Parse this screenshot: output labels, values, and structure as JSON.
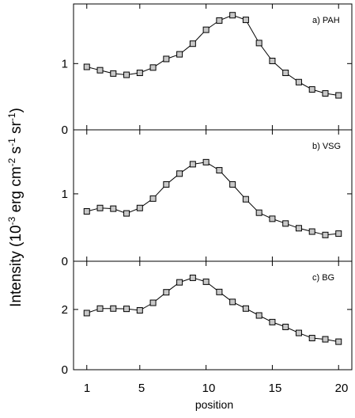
{
  "figure": {
    "xlabel": "position",
    "ylabel": {
      "parts": [
        {
          "text": "Intensity (10",
          "sup": false
        },
        {
          "text": "-3",
          "sup": true
        },
        {
          "text": " erg cm",
          "sup": false
        },
        {
          "text": "-2",
          "sup": true
        },
        {
          "text": " s",
          "sup": false
        },
        {
          "text": "-1",
          "sup": true
        },
        {
          "text": " sr",
          "sup": false
        },
        {
          "text": "-1",
          "sup": true
        },
        {
          "text": ")",
          "sup": false
        }
      ]
    },
    "x_ticks": [
      "1",
      "5",
      "10",
      "15",
      "20"
    ],
    "line_color": "#000000",
    "marker_fill": "#c8c8c8"
  },
  "chart_data": [
    {
      "type": "line",
      "title": "a) PAH",
      "xlabel": "position",
      "ylabel": "",
      "xlim": [
        0,
        21
      ],
      "ylim": [
        0,
        1.9
      ],
      "yticks": [
        "0",
        "1"
      ],
      "ytick_values": [
        0,
        1
      ],
      "marker": "square",
      "x": [
        1,
        2,
        3,
        4,
        5,
        6,
        7,
        8,
        9,
        10,
        11,
        12,
        13,
        14,
        15,
        16,
        17,
        18,
        19,
        20
      ],
      "y": [
        0.95,
        0.9,
        0.85,
        0.83,
        0.86,
        0.94,
        1.07,
        1.14,
        1.3,
        1.51,
        1.65,
        1.73,
        1.66,
        1.31,
        1.04,
        0.86,
        0.72,
        0.61,
        0.55,
        0.52
      ]
    },
    {
      "type": "line",
      "title": "b) VSG",
      "xlabel": "position",
      "ylabel": "",
      "xlim": [
        0,
        21
      ],
      "ylim": [
        0,
        1.95
      ],
      "yticks": [
        "0",
        "1"
      ],
      "ytick_values": [
        0,
        1
      ],
      "marker": "square",
      "x": [
        1,
        2,
        3,
        4,
        5,
        6,
        7,
        8,
        9,
        10,
        11,
        12,
        13,
        14,
        15,
        16,
        17,
        18,
        19,
        20
      ],
      "y": [
        0.74,
        0.79,
        0.78,
        0.71,
        0.79,
        0.93,
        1.14,
        1.3,
        1.44,
        1.47,
        1.35,
        1.14,
        0.92,
        0.72,
        0.63,
        0.56,
        0.49,
        0.44,
        0.39,
        0.41
      ]
    },
    {
      "type": "line",
      "title": "c) BG",
      "xlabel": "position",
      "ylabel": "",
      "xlim": [
        0,
        21
      ],
      "ylim": [
        0,
        3.6
      ],
      "yticks": [
        "0",
        "2"
      ],
      "ytick_values": [
        0,
        2
      ],
      "marker": "square",
      "x": [
        1,
        2,
        3,
        4,
        5,
        6,
        7,
        8,
        9,
        10,
        11,
        12,
        13,
        14,
        15,
        16,
        17,
        18,
        19,
        20
      ],
      "y": [
        1.88,
        2.03,
        2.03,
        2.02,
        1.97,
        2.22,
        2.57,
        2.9,
        3.05,
        2.92,
        2.58,
        2.25,
        2.03,
        1.8,
        1.58,
        1.42,
        1.22,
        1.05,
        1.01,
        0.93
      ]
    }
  ]
}
